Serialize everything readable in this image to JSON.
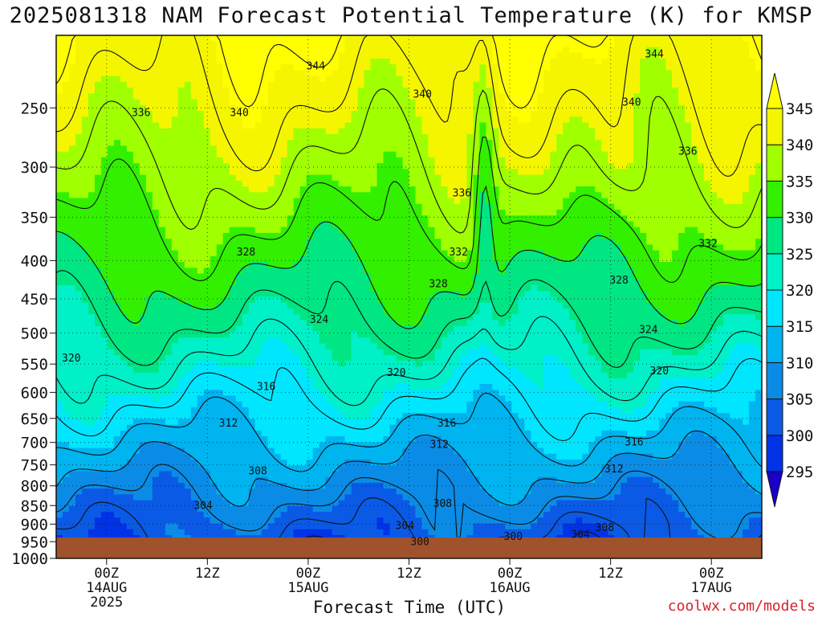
{
  "title": "2025081318 NAM Forecast Potential Temperature (K) for KMSP",
  "xlabel": "Forecast Time (UTC)",
  "credit": "coolwx.com/models",
  "chart_data": {
    "type": "heatmap",
    "title": "2025081318 NAM Forecast Potential Temperature (K) for KMSP",
    "xlabel": "Forecast Time (UTC)",
    "ylabel": "",
    "y_scale": "log-pressure",
    "y_axis": "pressure (hPa)",
    "pressure_range": [
      200,
      1000
    ],
    "y_ticks": [
      250,
      300,
      350,
      400,
      450,
      500,
      550,
      600,
      650,
      700,
      750,
      800,
      850,
      900,
      950,
      1000
    ],
    "x_ticks": [
      {
        "hour": 6,
        "lines": [
          "00Z",
          "14AUG",
          "2025"
        ]
      },
      {
        "hour": 18,
        "lines": [
          "12Z"
        ]
      },
      {
        "hour": 30,
        "lines": [
          "00Z",
          "15AUG"
        ]
      },
      {
        "hour": 42,
        "lines": [
          "12Z"
        ]
      },
      {
        "hour": 54,
        "lines": [
          "00Z",
          "16AUG"
        ]
      },
      {
        "hour": 66,
        "lines": [
          "12Z"
        ]
      },
      {
        "hour": 78,
        "lines": [
          "00Z",
          "17AUG"
        ]
      }
    ],
    "x_range": [
      0,
      84
    ],
    "colorbar": {
      "levels": [
        295,
        300,
        305,
        310,
        315,
        320,
        325,
        330,
        335,
        340,
        345
      ],
      "colors": [
        "#1b00c8",
        "#0032e6",
        "#0a5ae6",
        "#0a8ce6",
        "#00b4f0",
        "#00e6ff",
        "#00f0c8",
        "#00e682",
        "#32f000",
        "#a0ff00",
        "#f5f500",
        "#ffff00"
      ]
    },
    "contour_labels": [
      {
        "value": "344",
        "hour": 30.9,
        "p": 220
      },
      {
        "value": "344",
        "hour": 71.2,
        "p": 212
      },
      {
        "value": "340",
        "hour": 21.8,
        "p": 254
      },
      {
        "value": "340",
        "hour": 43.6,
        "p": 240
      },
      {
        "value": "340",
        "hour": 68.5,
        "p": 246
      },
      {
        "value": "336",
        "hour": 10.1,
        "p": 254
      },
      {
        "value": "336",
        "hour": 48.3,
        "p": 325
      },
      {
        "value": "336",
        "hour": 75.2,
        "p": 286
      },
      {
        "value": "332",
        "hour": 47.9,
        "p": 390
      },
      {
        "value": "332",
        "hour": 77.6,
        "p": 380
      },
      {
        "value": "328",
        "hour": 22.6,
        "p": 390
      },
      {
        "value": "328",
        "hour": 45.5,
        "p": 430
      },
      {
        "value": "328",
        "hour": 67.0,
        "p": 425
      },
      {
        "value": "324",
        "hour": 31.3,
        "p": 480
      },
      {
        "value": "324",
        "hour": 70.5,
        "p": 495
      },
      {
        "value": "320",
        "hour": 1.8,
        "p": 540
      },
      {
        "value": "320",
        "hour": 40.5,
        "p": 565
      },
      {
        "value": "320",
        "hour": 71.8,
        "p": 562
      },
      {
        "value": "316",
        "hour": 25.0,
        "p": 590
      },
      {
        "value": "316",
        "hour": 46.5,
        "p": 660
      },
      {
        "value": "316",
        "hour": 68.8,
        "p": 700
      },
      {
        "value": "312",
        "hour": 20.5,
        "p": 660
      },
      {
        "value": "312",
        "hour": 45.6,
        "p": 705
      },
      {
        "value": "312",
        "hour": 66.4,
        "p": 760
      },
      {
        "value": "308",
        "hour": 24.0,
        "p": 765
      },
      {
        "value": "308",
        "hour": 46.0,
        "p": 845
      },
      {
        "value": "308",
        "hour": 65.3,
        "p": 910
      },
      {
        "value": "304",
        "hour": 17.5,
        "p": 850
      },
      {
        "value": "304",
        "hour": 41.5,
        "p": 905
      },
      {
        "value": "304",
        "hour": 62.4,
        "p": 930
      },
      {
        "value": "300",
        "hour": 43.3,
        "p": 950
      },
      {
        "value": "300",
        "hour": 54.4,
        "p": 935
      }
    ]
  }
}
